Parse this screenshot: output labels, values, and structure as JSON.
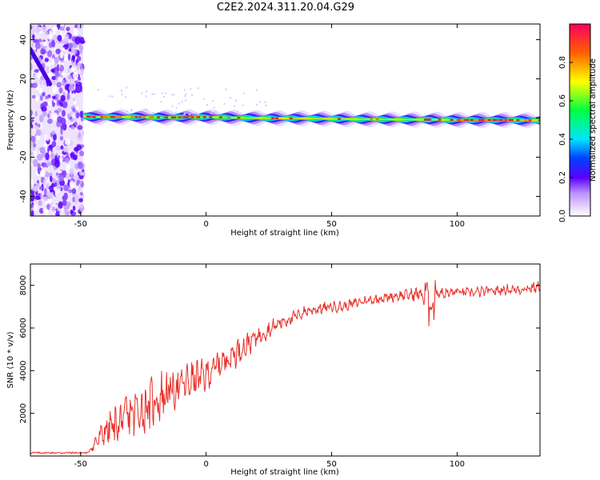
{
  "title": "C2E2.2024.311.20.04.G29",
  "chart_data": [
    {
      "type": "heatmap",
      "xlabel": "Height of straight line (km)",
      "ylabel": "Frequency (Hz)",
      "xlim": [
        -70,
        133
      ],
      "ylim": [
        -50,
        48
      ],
      "xticks": [
        -50,
        0,
        50,
        100
      ],
      "yticks": [
        -40,
        -20,
        0,
        20,
        40
      ],
      "noise_region_x": [
        -70,
        -49
      ],
      "tone": {
        "x": [
          -49,
          -45,
          -30,
          -15,
          0,
          10,
          20,
          40,
          60,
          80,
          90,
          100,
          110,
          120,
          133
        ],
        "frequency_hz": [
          1,
          0.5,
          0.5,
          0.3,
          0.5,
          0.2,
          0,
          -0.2,
          -0.6,
          -0.8,
          -0.8,
          -1,
          -1,
          -1,
          -1.2
        ]
      },
      "colorbar": {
        "label": "Normalized spectral amplitude",
        "range": [
          0,
          1
        ],
        "ticks": [
          "0.0",
          "0.2",
          "0.4",
          "0.6",
          "0.8"
        ]
      },
      "grid": false
    },
    {
      "type": "line",
      "xlabel": "Height of straight line (km)",
      "ylabel": "SNR (10 * v/v)",
      "xlim": [
        -70,
        133
      ],
      "ylim": [
        0,
        9000
      ],
      "xticks": [
        -50,
        0,
        50,
        100
      ],
      "yticks": [
        2000,
        4000,
        6000,
        8000
      ],
      "series": [
        {
          "color": "#e8302a",
          "x": [
            -70,
            -60,
            -50,
            -47,
            -45,
            -40,
            -35,
            -30,
            -25,
            -20,
            -15,
            -10,
            -5,
            0,
            5,
            10,
            15,
            20,
            25,
            30,
            35,
            40,
            45,
            50,
            55,
            60,
            65,
            70,
            75,
            80,
            85,
            88,
            90,
            91,
            92,
            95,
            100,
            105,
            110,
            115,
            120,
            125,
            130,
            133
          ],
          "y": [
            150,
            150,
            150,
            150,
            500,
            1200,
            1500,
            2000,
            2200,
            2600,
            3000,
            3300,
            3600,
            3800,
            4300,
            4700,
            5100,
            5600,
            5900,
            6300,
            6500,
            6800,
            6900,
            7000,
            7000,
            7200,
            7300,
            7400,
            7500,
            7550,
            7600,
            7500,
            7000,
            7600,
            7700,
            7600,
            7700,
            7650,
            7700,
            7750,
            7800,
            7800,
            7900,
            7900
          ],
          "noise_amplitude": [
            0,
            0,
            0,
            0,
            300,
            900,
            1200,
            1400,
            1500,
            1400,
            1300,
            1100,
            1000,
            900,
            800,
            800,
            700,
            550,
            450,
            400,
            350,
            300,
            300,
            300,
            280,
            280,
            280,
            280,
            280,
            300,
            400,
            1200,
            1600,
            1200,
            350,
            300,
            300,
            280,
            280,
            280,
            280,
            280,
            300,
            300
          ]
        }
      ],
      "grid": false
    }
  ]
}
